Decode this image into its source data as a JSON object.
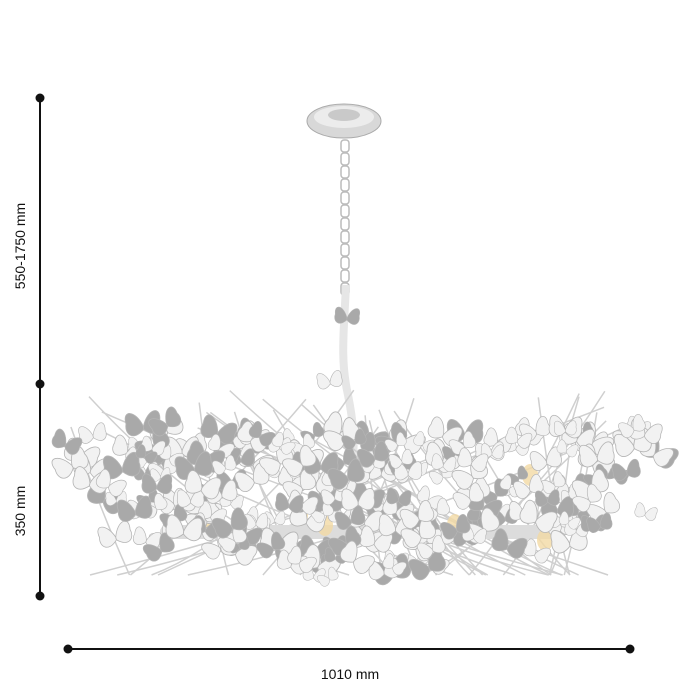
{
  "dimensions": {
    "height_adjustable": "550-1750 mm",
    "body_height": "350 mm",
    "width": "1010 mm"
  },
  "colors": {
    "dimension_line": "#111111",
    "fixture_white": "#f2f2f2",
    "fixture_shadow": "#a9a9a9",
    "bulb_glow": "#f3d9a4"
  }
}
